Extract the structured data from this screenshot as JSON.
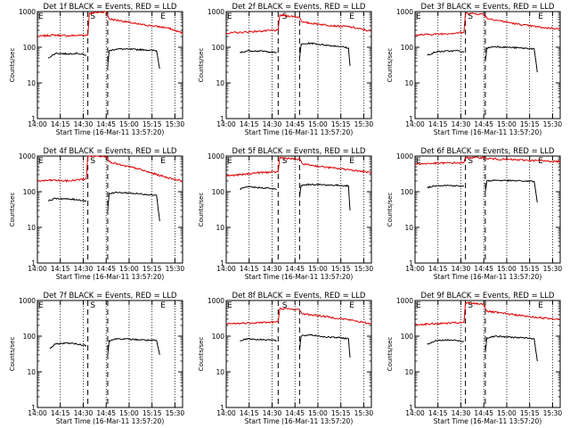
{
  "chart_data": [
    {
      "type": "line",
      "title": "Det 1f BLACK = Events, RED = LLD",
      "xlabel": "Start Time (16-Mar-11 13:57:20)",
      "ylabel": "Counts/sec",
      "x_ticks": [
        "14:00",
        "14:15",
        "14:30",
        "14:45",
        "15:00",
        "15:15",
        "15:30"
      ],
      "x_range_minutes": [
        0,
        95
      ],
      "yscale": "log",
      "ylim": [
        1,
        1000
      ],
      "y_ticks": [
        "1",
        "10",
        "100",
        "1000"
      ],
      "markers": [
        {
          "label": "E",
          "t": 0
        },
        {
          "label": "S",
          "t": 34
        },
        {
          "label": "E",
          "t": 80
        }
      ],
      "dashed_x": [
        33,
        46
      ],
      "dotted_x": [
        15,
        30,
        45,
        60,
        75,
        90
      ],
      "series": [
        {
          "color": "#e00000",
          "x": [
            0,
            10,
            20,
            33,
            34,
            45,
            47,
            55,
            65,
            75,
            85,
            95
          ],
          "values": [
            200,
            220,
            210,
            220,
            900,
            1000,
            620,
            550,
            450,
            400,
            350,
            250
          ]
        },
        {
          "color": "#000000",
          "x": [
            7,
            12,
            20,
            26,
            32
          ],
          "values": [
            50,
            68,
            65,
            68,
            60
          ]
        },
        {
          "color": "#000000",
          "x": [
            46,
            47,
            52,
            60,
            70,
            78,
            80
          ],
          "values": [
            30,
            80,
            90,
            88,
            85,
            80,
            25
          ]
        }
      ]
    },
    {
      "type": "line",
      "title": "Det 2f BLACK = Events, RED = LLD",
      "xlabel": "Start Time (16-Mar-11 13:57:20)",
      "ylabel": "Counts/sec",
      "x_ticks": [
        "14:00",
        "14:15",
        "14:30",
        "14:45",
        "15:00",
        "15:15",
        "15:30"
      ],
      "x_range_minutes": [
        0,
        95
      ],
      "yscale": "log",
      "ylim": [
        1,
        1000
      ],
      "y_ticks": [
        "1",
        "10",
        "100",
        "1000"
      ],
      "markers": [
        {
          "label": "E",
          "t": 0
        },
        {
          "label": "S",
          "t": 36
        },
        {
          "label": "E",
          "t": 80
        }
      ],
      "dashed_x": [
        34,
        48
      ],
      "dotted_x": [
        15,
        30,
        45,
        60,
        75,
        90
      ],
      "series": [
        {
          "color": "#e00000",
          "x": [
            0,
            10,
            20,
            34,
            35,
            48,
            50,
            60,
            70,
            80,
            95
          ],
          "values": [
            250,
            260,
            280,
            300,
            800,
            700,
            500,
            450,
            400,
            380,
            280
          ]
        },
        {
          "color": "#000000",
          "x": [
            9,
            14,
            22,
            28,
            33
          ],
          "values": [
            70,
            80,
            78,
            75,
            70
          ]
        },
        {
          "color": "#000000",
          "x": [
            48,
            49,
            55,
            65,
            75,
            80,
            81
          ],
          "values": [
            50,
            120,
            130,
            115,
            105,
            95,
            30
          ]
        }
      ]
    },
    {
      "type": "line",
      "title": "Det 3f BLACK = Events, RED = LLD",
      "xlabel": "Start Time (16-Mar-11 13:57:20)",
      "ylabel": "Counts/sec",
      "x_ticks": [
        "14:00",
        "14:15",
        "14:30",
        "14:45",
        "15:00",
        "15:15",
        "15:30"
      ],
      "x_range_minutes": [
        0,
        95
      ],
      "yscale": "log",
      "ylim": [
        1,
        1000
      ],
      "y_ticks": [
        "1",
        "10",
        "100",
        "1000"
      ],
      "markers": [
        {
          "label": "E",
          "t": 0
        },
        {
          "label": "S",
          "t": 34
        },
        {
          "label": "E",
          "t": 80
        }
      ],
      "dashed_x": [
        33,
        46
      ],
      "dotted_x": [
        15,
        30,
        45,
        60,
        75,
        90
      ],
      "series": [
        {
          "color": "#e00000",
          "x": [
            0,
            10,
            20,
            32,
            33,
            45,
            47,
            55,
            65,
            75,
            85,
            95
          ],
          "values": [
            220,
            230,
            240,
            260,
            900,
            850,
            650,
            560,
            460,
            400,
            350,
            330
          ]
        },
        {
          "color": "#000000",
          "x": [
            8,
            14,
            22,
            28,
            32
          ],
          "values": [
            60,
            75,
            78,
            80,
            72
          ]
        },
        {
          "color": "#000000",
          "x": [
            46,
            47,
            52,
            60,
            70,
            78,
            80
          ],
          "values": [
            40,
            95,
            105,
            100,
            95,
            90,
            20
          ]
        }
      ]
    },
    {
      "type": "line",
      "title": "Det 4f BLACK = Events, RED = LLD",
      "xlabel": "Start Time (16-Mar-11 13:57:20)",
      "ylabel": "Counts/sec",
      "x_ticks": [
        "14:00",
        "14:15",
        "14:30",
        "14:45",
        "15:00",
        "15:15",
        "15:30"
      ],
      "x_range_minutes": [
        0,
        95
      ],
      "yscale": "log",
      "ylim": [
        1,
        1000
      ],
      "y_ticks": [
        "1",
        "10",
        "100",
        "1000"
      ],
      "markers": [
        {
          "label": "E",
          "t": 0
        },
        {
          "label": "S",
          "t": 34
        },
        {
          "label": "E",
          "t": 80
        }
      ],
      "dashed_x": [
        33,
        46
      ],
      "dotted_x": [
        15,
        30,
        45,
        60,
        75,
        90
      ],
      "series": [
        {
          "color": "#e00000",
          "x": [
            0,
            10,
            20,
            32,
            33,
            45,
            47,
            55,
            65,
            75,
            85,
            95
          ],
          "values": [
            200,
            210,
            200,
            230,
            1000,
            1000,
            700,
            550,
            450,
            330,
            250,
            200
          ]
        },
        {
          "color": "#000000",
          "x": [
            7,
            12,
            20,
            26,
            32
          ],
          "values": [
            55,
            65,
            62,
            60,
            55
          ]
        },
        {
          "color": "#000000",
          "x": [
            46,
            47,
            52,
            60,
            70,
            78,
            80
          ],
          "values": [
            30,
            90,
            95,
            92,
            85,
            80,
            15
          ]
        }
      ]
    },
    {
      "type": "line",
      "title": "Det 5f BLACK = Events, RED = LLD",
      "xlabel": "Start Time (16-Mar-11 13:57:20)",
      "ylabel": "Counts/sec",
      "x_ticks": [
        "14:00",
        "14:15",
        "14:30",
        "14:45",
        "15:00",
        "15:15",
        "15:30"
      ],
      "x_range_minutes": [
        0,
        95
      ],
      "yscale": "log",
      "ylim": [
        1,
        1000
      ],
      "y_ticks": [
        "1",
        "10",
        "100",
        "1000"
      ],
      "markers": [
        {
          "label": "E",
          "t": 0
        },
        {
          "label": "S",
          "t": 36
        },
        {
          "label": "E",
          "t": 80
        }
      ],
      "dashed_x": [
        34,
        48
      ],
      "dotted_x": [
        15,
        30,
        45,
        60,
        75,
        90
      ],
      "series": [
        {
          "color": "#e00000",
          "x": [
            0,
            10,
            20,
            34,
            35,
            48,
            50,
            60,
            70,
            80,
            95
          ],
          "values": [
            280,
            300,
            340,
            360,
            900,
            800,
            600,
            520,
            460,
            420,
            340
          ]
        },
        {
          "color": "#000000",
          "x": [
            9,
            14,
            22,
            28,
            33
          ],
          "values": [
            120,
            135,
            130,
            125,
            115
          ]
        },
        {
          "color": "#000000",
          "x": [
            48,
            49,
            55,
            65,
            75,
            80,
            81
          ],
          "values": [
            70,
            150,
            160,
            155,
            150,
            145,
            30
          ]
        }
      ]
    },
    {
      "type": "line",
      "title": "Det 6f BLACK = Events, RED = LLD",
      "xlabel": "Start Time (16-Mar-11 13:57:20)",
      "ylabel": "Counts/sec",
      "x_ticks": [
        "14:00",
        "14:15",
        "14:30",
        "14:45",
        "15:00",
        "15:15",
        "15:30"
      ],
      "x_range_minutes": [
        0,
        95
      ],
      "yscale": "log",
      "ylim": [
        1,
        1000
      ],
      "y_ticks": [
        "1",
        "10",
        "100",
        "1000"
      ],
      "markers": [
        {
          "label": "E",
          "t": 0
        },
        {
          "label": "S",
          "t": 34
        },
        {
          "label": "E",
          "t": 80
        }
      ],
      "dashed_x": [
        33,
        46
      ],
      "dotted_x": [
        15,
        30,
        45,
        60,
        75,
        90
      ],
      "series": [
        {
          "color": "#e00000",
          "x": [
            0,
            10,
            20,
            32,
            33,
            45,
            47,
            60,
            75,
            95
          ],
          "values": [
            600,
            620,
            640,
            650,
            900,
            900,
            850,
            800,
            760,
            700
          ]
        },
        {
          "color": "#000000",
          "x": [
            8,
            14,
            22,
            28,
            32
          ],
          "values": [
            130,
            150,
            150,
            145,
            140
          ]
        },
        {
          "color": "#000000",
          "x": [
            46,
            47,
            52,
            60,
            70,
            78,
            80
          ],
          "values": [
            100,
            200,
            210,
            205,
            200,
            195,
            50
          ]
        }
      ]
    },
    {
      "type": "line",
      "title": "Det 7f BLACK = Events, RED = LLD",
      "xlabel": "Start Time (16-Mar-11 13:57:20)",
      "ylabel": "Counts/sec",
      "x_ticks": [
        "14:00",
        "14:15",
        "14:30",
        "14:45",
        "15:00",
        "15:15",
        "15:30"
      ],
      "x_range_minutes": [
        0,
        95
      ],
      "yscale": "log",
      "ylim": [
        1,
        1000
      ],
      "y_ticks": [
        "1",
        "10",
        "100",
        "1000"
      ],
      "markers": [
        {
          "label": "E",
          "t": 0
        },
        {
          "label": "S",
          "t": 34
        },
        {
          "label": "E",
          "t": 80
        }
      ],
      "dashed_x": [
        33,
        46
      ],
      "dotted_x": [
        15,
        30,
        45,
        60,
        75,
        90
      ],
      "series": [
        {
          "color": "#000000",
          "x": [
            8,
            12,
            20,
            26,
            32
          ],
          "values": [
            45,
            60,
            65,
            60,
            55
          ]
        },
        {
          "color": "#000000",
          "x": [
            46,
            47,
            52,
            60,
            70,
            78,
            80
          ],
          "values": [
            30,
            75,
            85,
            82,
            78,
            75,
            30
          ]
        }
      ]
    },
    {
      "type": "line",
      "title": "Det 8f BLACK = Events, RED = LLD",
      "xlabel": "Start Time (16-Mar-11 13:57:20)",
      "ylabel": "Counts/sec",
      "x_ticks": [
        "14:00",
        "14:15",
        "14:30",
        "14:45",
        "15:00",
        "15:15",
        "15:30"
      ],
      "x_range_minutes": [
        0,
        95
      ],
      "yscale": "log",
      "ylim": [
        1,
        1000
      ],
      "y_ticks": [
        "1",
        "10",
        "100",
        "1000"
      ],
      "markers": [
        {
          "label": "E",
          "t": 0
        },
        {
          "label": "S",
          "t": 36
        },
        {
          "label": "E",
          "t": 80
        }
      ],
      "dashed_x": [
        34,
        48
      ],
      "dotted_x": [
        15,
        30,
        45,
        60,
        75,
        90
      ],
      "series": [
        {
          "color": "#e00000",
          "x": [
            0,
            10,
            20,
            34,
            35,
            48,
            50,
            60,
            70,
            80,
            95
          ],
          "values": [
            220,
            230,
            240,
            250,
            600,
            550,
            420,
            380,
            330,
            290,
            220
          ]
        },
        {
          "color": "#000000",
          "x": [
            9,
            14,
            22,
            28,
            33
          ],
          "values": [
            75,
            85,
            80,
            80,
            75
          ]
        },
        {
          "color": "#000000",
          "x": [
            48,
            49,
            55,
            65,
            75,
            80,
            81
          ],
          "values": [
            40,
            100,
            110,
            95,
            90,
            85,
            25
          ]
        }
      ]
    },
    {
      "type": "line",
      "title": "Det 9f BLACK = Events, RED = LLD",
      "xlabel": "Start Time (16-Mar-11 13:57:20)",
      "ylabel": "Counts/sec",
      "x_ticks": [
        "14:00",
        "14:15",
        "14:30",
        "14:45",
        "15:00",
        "15:15",
        "15:30"
      ],
      "x_range_minutes": [
        0,
        95
      ],
      "yscale": "log",
      "ylim": [
        1,
        1000
      ],
      "y_ticks": [
        "1",
        "10",
        "100",
        "1000"
      ],
      "markers": [
        {
          "label": "E",
          "t": 0
        },
        {
          "label": "S",
          "t": 34
        },
        {
          "label": "E",
          "t": 80
        }
      ],
      "dashed_x": [
        33,
        46
      ],
      "dotted_x": [
        15,
        30,
        45,
        60,
        75,
        90
      ],
      "series": [
        {
          "color": "#e00000",
          "x": [
            0,
            10,
            20,
            32,
            33,
            45,
            47,
            55,
            65,
            75,
            85,
            95
          ],
          "values": [
            210,
            220,
            230,
            240,
            850,
            800,
            500,
            450,
            400,
            350,
            320,
            300
          ]
        },
        {
          "color": "#000000",
          "x": [
            8,
            14,
            22,
            28,
            32
          ],
          "values": [
            60,
            75,
            78,
            75,
            70
          ]
        },
        {
          "color": "#000000",
          "x": [
            46,
            47,
            52,
            60,
            70,
            78,
            80
          ],
          "values": [
            35,
            90,
            100,
            95,
            90,
            85,
            20
          ]
        }
      ]
    }
  ]
}
